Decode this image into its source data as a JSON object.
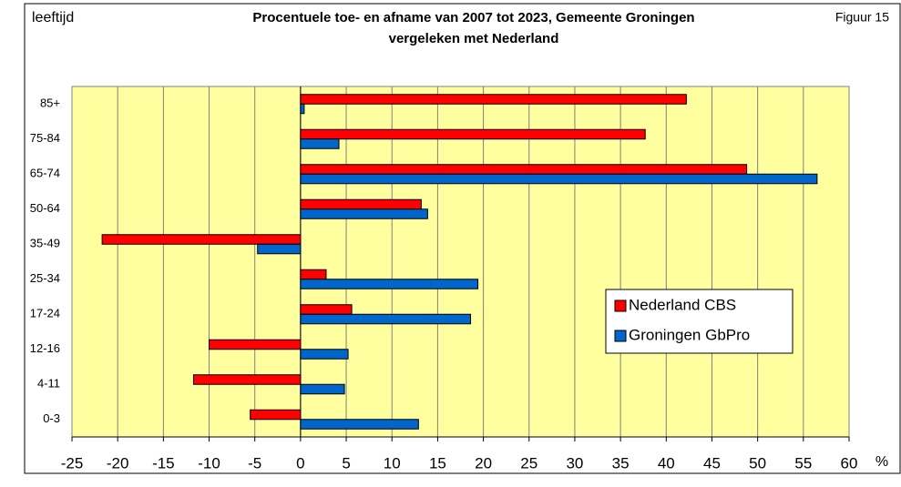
{
  "chart_data": {
    "type": "hbar",
    "title": "Procentuele toe- en afname van 2007 tot 2023, Gemeente Groningen",
    "subtitle": "vergeleken met Nederland",
    "y_label": "leeftijd",
    "x_label": "%",
    "figure_label": "Figuur 15",
    "categories": [
      "85+",
      "75-84",
      "65-74",
      "50-64",
      "35-49",
      "25-34",
      "17-24",
      "12-16",
      "4-11",
      "0-3"
    ],
    "series": [
      {
        "name": "Nederland CBS",
        "color": "#ff0000",
        "values": [
          42.2,
          37.7,
          48.8,
          13.2,
          -21.7,
          2.8,
          5.6,
          -10.0,
          -11.7,
          -5.5
        ]
      },
      {
        "name": "Groningen GbPro",
        "color": "#0066cc",
        "values": [
          0.4,
          4.2,
          56.5,
          13.9,
          -4.7,
          19.4,
          18.6,
          5.2,
          4.8,
          12.9
        ]
      }
    ],
    "xlim": [
      -25,
      60
    ],
    "xticks": [
      -25,
      -20,
      -15,
      -10,
      -5,
      0,
      5,
      10,
      15,
      20,
      25,
      30,
      35,
      40,
      45,
      50,
      55,
      60
    ],
    "grid": true,
    "legend": "right"
  }
}
